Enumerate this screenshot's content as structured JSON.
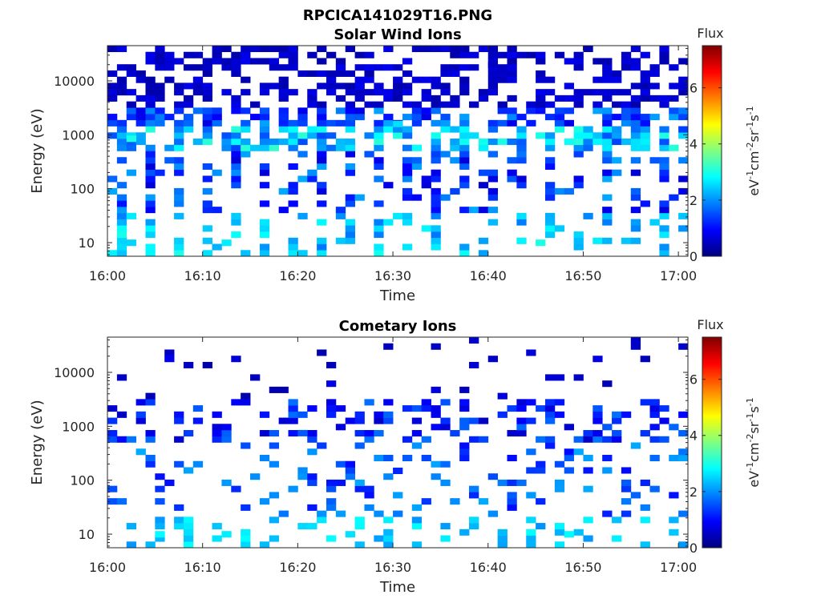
{
  "figure_title": "RPCICA141029T16.PNG",
  "chart_data": [
    {
      "type": "heatmap",
      "title": "Solar Wind Ions",
      "xlabel": "Time",
      "ylabel": "Energy (eV)",
      "x_range": [
        "16:00",
        "17:01"
      ],
      "x_ticks": [
        "16:00",
        "16:10",
        "16:20",
        "16:30",
        "16:40",
        "16:50",
        "17:00"
      ],
      "y_scale": "log",
      "y_range": [
        5.6,
        45000
      ],
      "y_ticks": [
        "10",
        "100",
        "1000",
        "10000"
      ],
      "colorbar": {
        "label": "Flux",
        "unit_base": [
          "eV",
          "cm",
          "sr",
          "s"
        ],
        "unit_exp": [
          "-1",
          "-2",
          "-1",
          "-1"
        ],
        "range": [
          0,
          7.5
        ],
        "ticks": [
          "0",
          "2",
          "4",
          "6"
        ],
        "colormap": "jet"
      },
      "sample_cells": [
        {
          "time": "16:02",
          "energy_eV": 850,
          "flux": 3.0
        },
        {
          "time": "16:02",
          "energy_eV": 10,
          "flux": 2.5
        },
        {
          "time": "16:12",
          "energy_eV": 10,
          "flux": 2.7
        },
        {
          "time": "16:45",
          "energy_eV": 10,
          "flux": 3.0
        },
        {
          "time": "16:30",
          "energy_eV": 1600,
          "flux": 2.6
        },
        {
          "time": "16:40",
          "energy_eV": 20000,
          "flux": 0.5
        }
      ]
    },
    {
      "type": "heatmap",
      "title": "Cometary Ions",
      "xlabel": "Time",
      "ylabel": "Energy (eV)",
      "x_range": [
        "16:00",
        "17:01"
      ],
      "x_ticks": [
        "16:00",
        "16:10",
        "16:20",
        "16:30",
        "16:40",
        "16:50",
        "17:00"
      ],
      "y_scale": "log",
      "y_range": [
        5.6,
        45000
      ],
      "y_ticks": [
        "10",
        "100",
        "1000",
        "10000"
      ],
      "colorbar": {
        "label": "Flux",
        "unit_base": [
          "eV",
          "cm",
          "sr",
          "s"
        ],
        "unit_exp": [
          "-1",
          "-2",
          "-1",
          "-1"
        ],
        "range": [
          0,
          7.5
        ],
        "ticks": [
          "0",
          "2",
          "4",
          "6"
        ],
        "colormap": "jet"
      },
      "sample_cells": [
        {
          "time": "16:05",
          "energy_eV": 10,
          "flux": 2.8
        },
        {
          "time": "16:12",
          "energy_eV": 10,
          "flux": 2.7
        },
        {
          "time": "16:25",
          "energy_eV": 10,
          "flux": 2.6
        },
        {
          "time": "16:48",
          "energy_eV": 10,
          "flux": 2.8
        },
        {
          "time": "16:20",
          "energy_eV": 750,
          "flux": 1.6
        },
        {
          "time": "16:30",
          "energy_eV": 150,
          "flux": 1.2
        }
      ]
    }
  ]
}
